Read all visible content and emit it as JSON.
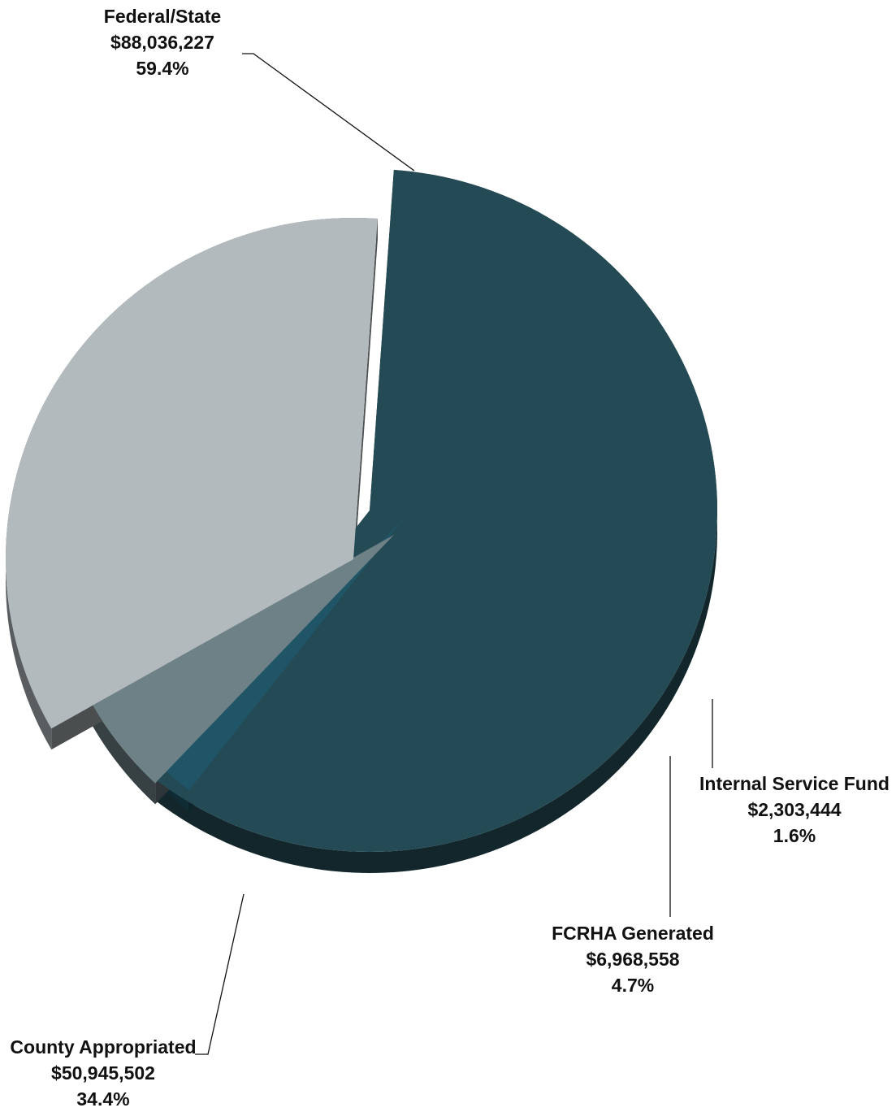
{
  "chart_data": {
    "type": "pie",
    "title": "",
    "slices": [
      {
        "label": "Federal/State",
        "value": 88036227,
        "value_text": "$88,036,227",
        "percent_text": "59.4%",
        "color": "#244b55"
      },
      {
        "label": "Internal Service Fund",
        "value": 2303444,
        "value_text": "$2,303,444",
        "percent_text": "1.6%",
        "color": "#1f5566"
      },
      {
        "label": "FCRHA Generated",
        "value": 6968558,
        "value_text": "$6,968,558",
        "percent_text": "4.7%",
        "color": "#6e8187"
      },
      {
        "label": "County Appropriated",
        "value": 50945502,
        "value_text": "$50,945,502",
        "percent_text": "34.4%",
        "color": "#b2babd"
      }
    ],
    "style": "3d-exploded-pie",
    "legend": "none (leader-line labels)"
  }
}
